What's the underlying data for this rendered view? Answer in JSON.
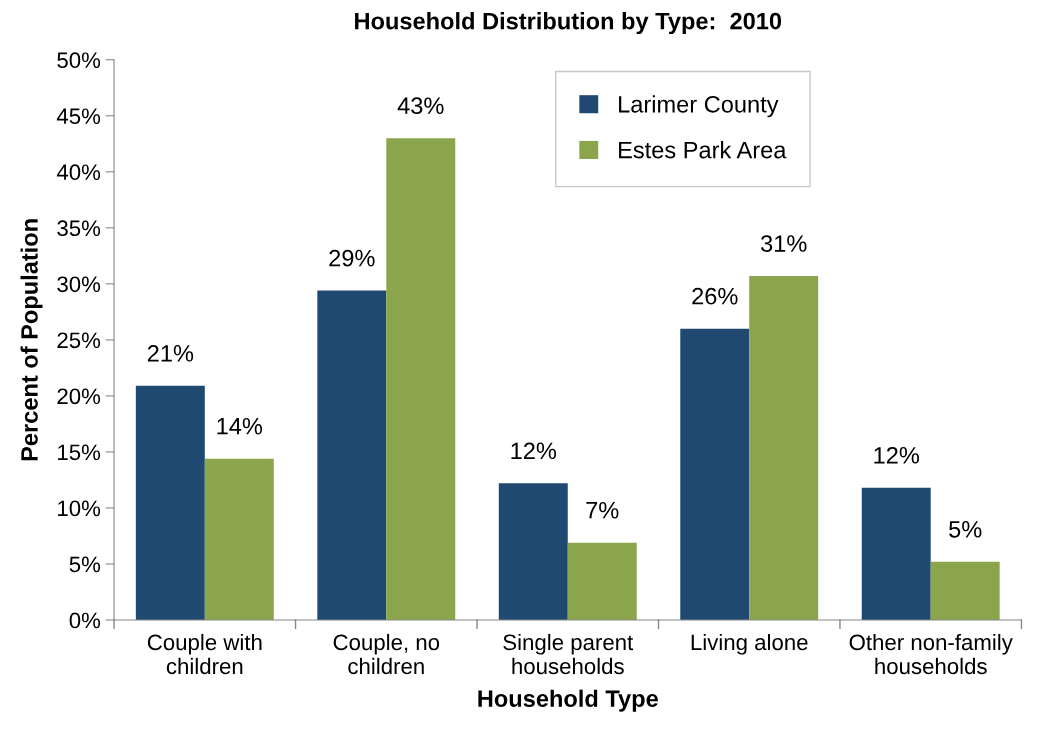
{
  "chart_data": {
    "type": "bar",
    "title": "Household Distribution by Type:  2010",
    "xlabel": "Household Type",
    "ylabel": "Percent of Population",
    "categories": [
      "Couple with\nchildren",
      "Couple, no\nchildren",
      "Single parent\nhouseholds",
      "Living alone",
      "Other non-family\nhouseholds"
    ],
    "series": [
      {
        "name": "Larimer County",
        "color": "#1f4970",
        "values": [
          20.9,
          29.4,
          12.2,
          26.0,
          11.8
        ],
        "value_labels": [
          "21%",
          "29%",
          "12%",
          "26%",
          "12%"
        ]
      },
      {
        "name": "Estes Park Area",
        "color": "#8aa54b",
        "values": [
          14.4,
          43.0,
          6.9,
          30.7,
          5.2
        ],
        "value_labels": [
          "14%",
          "43%",
          "7%",
          "31%",
          "5%"
        ]
      }
    ],
    "ylim": [
      0,
      50
    ],
    "yticks": [
      {
        "value": 0,
        "label": "0%"
      },
      {
        "value": 5,
        "label": "5%"
      },
      {
        "value": 10,
        "label": "10%"
      },
      {
        "value": 15,
        "label": "15%"
      },
      {
        "value": 20,
        "label": "20%"
      },
      {
        "value": 25,
        "label": "25%"
      },
      {
        "value": 30,
        "label": "30%"
      },
      {
        "value": 35,
        "label": "35%"
      },
      {
        "value": 40,
        "label": "40%"
      },
      {
        "value": 45,
        "label": "45%"
      },
      {
        "value": 50,
        "label": "50%"
      }
    ],
    "grid": false,
    "legend": "top right"
  }
}
